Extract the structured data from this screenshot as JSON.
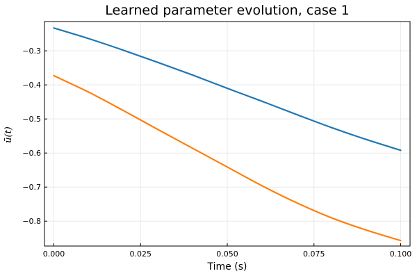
{
  "chart_data": {
    "type": "line",
    "title": "Learned parameter evolution, case 1",
    "xlabel": "Time (s)",
    "ylabel": "ū(t)",
    "xlim": [
      -0.0027,
      0.1027
    ],
    "ylim": [
      -0.873,
      -0.214
    ],
    "xticks": [
      0.0,
      0.025,
      0.05,
      0.075,
      0.1
    ],
    "xtick_labels": [
      "0.000",
      "0.025",
      "0.050",
      "0.075",
      "0.100"
    ],
    "yticks": [
      -0.3,
      -0.4,
      -0.5,
      -0.6,
      -0.7,
      -0.8
    ],
    "ytick_labels": [
      "−0.3",
      "−0.4",
      "−0.5",
      "−0.6",
      "−0.7",
      "−0.8"
    ],
    "grid": true,
    "legend": "none",
    "series": [
      {
        "color": "#1f77b4",
        "x": [
          0.0,
          0.01,
          0.02,
          0.03,
          0.04,
          0.05,
          0.06,
          0.07,
          0.08,
          0.09,
          0.1
        ],
        "y": [
          -0.233,
          -0.264,
          -0.298,
          -0.334,
          -0.371,
          -0.41,
          -0.448,
          -0.487,
          -0.525,
          -0.56,
          -0.592
        ]
      },
      {
        "color": "#ff7f0e",
        "x": [
          0.0,
          0.01,
          0.02,
          0.03,
          0.04,
          0.05,
          0.06,
          0.07,
          0.08,
          0.09,
          0.1
        ],
        "y": [
          -0.373,
          -0.421,
          -0.475,
          -0.531,
          -0.586,
          -0.641,
          -0.696,
          -0.746,
          -0.79,
          -0.826,
          -0.857
        ]
      }
    ]
  }
}
